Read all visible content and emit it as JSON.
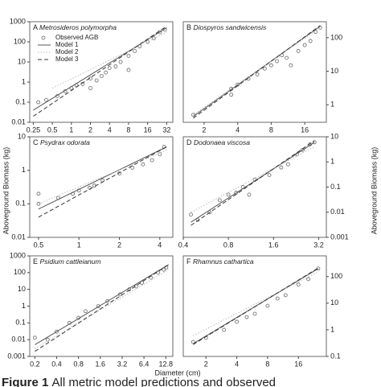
{
  "ylabel": "Aboveground Biomass (kg)",
  "xlabel": "Diameter (cm)",
  "caption_label": "Figure 1",
  "caption": "All metric model predictions and observed",
  "chart_data": [
    {
      "type": "scatter",
      "panel": "A",
      "title": "Metrosideros polymorpha",
      "xscale": "log",
      "yscale": "log",
      "yaxis": "left",
      "legend": "upper left",
      "xlim": [
        0.22,
        40
      ],
      "ylim": [
        0.01,
        1000
      ],
      "xticks": [
        0.25,
        0.5,
        1,
        2,
        4,
        8,
        16,
        32
      ],
      "yticks": [
        0.01,
        0.1,
        1,
        10,
        100,
        1000
      ],
      "series": [
        {
          "name": "Observed AGB",
          "color": "#666666",
          "x": [
            0.3,
            0.4,
            0.6,
            0.8,
            1,
            1.2,
            1.5,
            2,
            2.5,
            3,
            3.5,
            4,
            5,
            6,
            8,
            10,
            12,
            16,
            20,
            25,
            30,
            2,
            8
          ],
          "values": [
            0.1,
            0.13,
            0.2,
            0.35,
            0.5,
            0.7,
            0.8,
            1.5,
            1.2,
            2,
            3,
            5,
            6,
            10,
            20,
            35,
            60,
            100,
            150,
            300,
            400,
            0.5,
            4
          ]
        },
        {
          "name": "Model 1",
          "color": "#555555",
          "linestyle": "solid",
          "x": [
            0.25,
            32
          ],
          "values": [
            0.04,
            500
          ]
        },
        {
          "name": "Model 2",
          "color": "#bbbbbb",
          "linestyle": "dotted",
          "x": [
            0.5,
            32
          ],
          "values": [
            0.5,
            300
          ]
        },
        {
          "name": "Model 3",
          "color": "#333333",
          "linestyle": "dashed",
          "x": [
            0.25,
            32
          ],
          "values": [
            0.02,
            600
          ]
        }
      ]
    },
    {
      "type": "scatter",
      "panel": "B",
      "title": "Diospyros sandwicensis",
      "xscale": "log",
      "yscale": "log",
      "yaxis": "right",
      "xlim": [
        1.3,
        25
      ],
      "ylim": [
        0.3,
        300
      ],
      "xticks": [
        2,
        4,
        8,
        16
      ],
      "yticks": [
        1,
        10,
        100
      ],
      "series": [
        {
          "color": "#666666",
          "x": [
            1.6,
            3.5,
            3.5,
            4,
            5,
            6,
            7,
            8,
            9,
            10,
            11,
            12,
            14,
            16,
            18,
            20,
            22
          ],
          "values": [
            0.5,
            3,
            2,
            4,
            6,
            8,
            12,
            15,
            20,
            30,
            25,
            15,
            40,
            60,
            80,
            150,
            200
          ]
        },
        {
          "color": "#555555",
          "linestyle": "solid",
          "x": [
            1.6,
            22
          ],
          "values": [
            0.45,
            220
          ]
        },
        {
          "color": "#bbbbbb",
          "linestyle": "dotted",
          "x": [
            1.6,
            22
          ],
          "values": [
            0.5,
            200
          ]
        },
        {
          "color": "#333333",
          "linestyle": "dashed",
          "x": [
            1.6,
            22
          ],
          "values": [
            0.4,
            230
          ]
        }
      ]
    },
    {
      "type": "scatter",
      "panel": "C",
      "title": "Psydrax odorata",
      "xscale": "log",
      "yscale": "log",
      "yaxis": "left",
      "xlim": [
        0.43,
        5
      ],
      "ylim": [
        0.01,
        10
      ],
      "xticks": [
        0.5,
        1,
        2,
        4
      ],
      "yticks": [
        0.01,
        0.1,
        1,
        10
      ],
      "series": [
        {
          "color": "#666666",
          "x": [
            0.5,
            0.5,
            0.7,
            0.9,
            1,
            1.2,
            1.3,
            1.5,
            2,
            2.5,
            3,
            3.5,
            4,
            4.3
          ],
          "values": [
            0.2,
            0.1,
            0.15,
            0.2,
            0.25,
            0.3,
            0.35,
            0.5,
            0.8,
            1.2,
            1.5,
            2,
            3,
            5
          ]
        },
        {
          "color": "#555555",
          "linestyle": "solid",
          "x": [
            0.5,
            4.5
          ],
          "values": [
            0.07,
            5
          ]
        },
        {
          "color": "#bbbbbb",
          "linestyle": "dotted",
          "x": [
            0.5,
            4.5
          ],
          "values": [
            0.1,
            4
          ]
        },
        {
          "color": "#333333",
          "linestyle": "dashed",
          "x": [
            0.5,
            4.5
          ],
          "values": [
            0.04,
            5
          ]
        }
      ]
    },
    {
      "type": "scatter",
      "panel": "D",
      "title": "Dodonaea viscosa",
      "xscale": "log",
      "yscale": "log",
      "yaxis": "right",
      "xlim": [
        0.4,
        3.6
      ],
      "ylim": [
        0.001,
        10
      ],
      "xticks": [
        0.4,
        0.8,
        1.6,
        3.2
      ],
      "yticks": [
        0.001,
        0.01,
        0.1,
        1,
        10
      ],
      "series": [
        {
          "color": "#666666",
          "x": [
            0.45,
            0.5,
            0.6,
            0.7,
            0.8,
            0.9,
            1,
            1.1,
            1.2,
            1.5,
            1.8,
            2,
            2.3,
            2.5,
            2.8,
            3
          ],
          "values": [
            0.008,
            0.005,
            0.01,
            0.03,
            0.05,
            0.06,
            0.1,
            0.05,
            0.2,
            0.3,
            0.6,
            0.8,
            2,
            3,
            5,
            6
          ]
        },
        {
          "color": "#555555",
          "linestyle": "solid",
          "x": [
            0.45,
            3
          ],
          "values": [
            0.004,
            6
          ]
        },
        {
          "color": "#bbbbbb",
          "linestyle": "dotted",
          "x": [
            0.45,
            3
          ],
          "values": [
            0.01,
            4
          ]
        },
        {
          "color": "#333333",
          "linestyle": "dashed",
          "x": [
            0.45,
            3
          ],
          "values": [
            0.003,
            7
          ]
        }
      ]
    },
    {
      "type": "scatter",
      "panel": "E",
      "title": "Psidium cattleianum",
      "xscale": "log",
      "yscale": "log",
      "yaxis": "left",
      "xlim": [
        0.17,
        16
      ],
      "ylim": [
        0.001,
        1000
      ],
      "xticks": [
        0.2,
        0.4,
        0.8,
        1.6,
        3.2,
        6.4,
        12.8
      ],
      "yticks": [
        0.001,
        0.01,
        0.1,
        1,
        10,
        100,
        1000
      ],
      "series": [
        {
          "color": "#666666",
          "x": [
            0.2,
            0.3,
            0.4,
            0.6,
            0.8,
            1,
            1.5,
            2,
            3,
            4,
            5,
            6,
            8,
            10,
            12,
            13
          ],
          "values": [
            0.013,
            0.01,
            0.03,
            0.1,
            0.2,
            0.5,
            1,
            2,
            5,
            10,
            15,
            25,
            50,
            100,
            150,
            200
          ]
        },
        {
          "color": "#555555",
          "linestyle": "solid",
          "x": [
            0.2,
            14
          ],
          "values": [
            0.005,
            300
          ]
        },
        {
          "color": "#bbbbbb",
          "linestyle": "dotted",
          "x": [
            0.2,
            14
          ],
          "values": [
            0.003,
            150
          ]
        },
        {
          "color": "#333333",
          "linestyle": "dashed",
          "x": [
            0.2,
            14
          ],
          "values": [
            0.002,
            300
          ]
        }
      ]
    },
    {
      "type": "scatter",
      "panel": "F",
      "title": "Rhamnus cathartica",
      "xscale": "log",
      "yscale": "log",
      "yaxis": "right",
      "xlim": [
        1.2,
        30
      ],
      "ylim": [
        0.1,
        600
      ],
      "xticks": [
        2,
        4,
        8,
        16
      ],
      "yticks": [
        0.1,
        1,
        10,
        100
      ],
      "series": [
        {
          "color": "#666666",
          "x": [
            1.5,
            2,
            3,
            4,
            5,
            6,
            8,
            10,
            12,
            16,
            20,
            25
          ],
          "values": [
            0.35,
            0.5,
            1,
            2,
            3,
            4,
            8,
            15,
            20,
            50,
            80,
            200
          ]
        },
        {
          "color": "#555555",
          "linestyle": "solid",
          "x": [
            1.5,
            25
          ],
          "values": [
            0.3,
            200
          ]
        },
        {
          "color": "#bbbbbb",
          "linestyle": "dotted",
          "x": [
            1.5,
            25
          ],
          "values": [
            0.6,
            150
          ]
        },
        {
          "color": "#333333",
          "linestyle": "dashed",
          "x": [
            1.5,
            25
          ],
          "values": [
            0.28,
            210
          ]
        }
      ]
    }
  ]
}
